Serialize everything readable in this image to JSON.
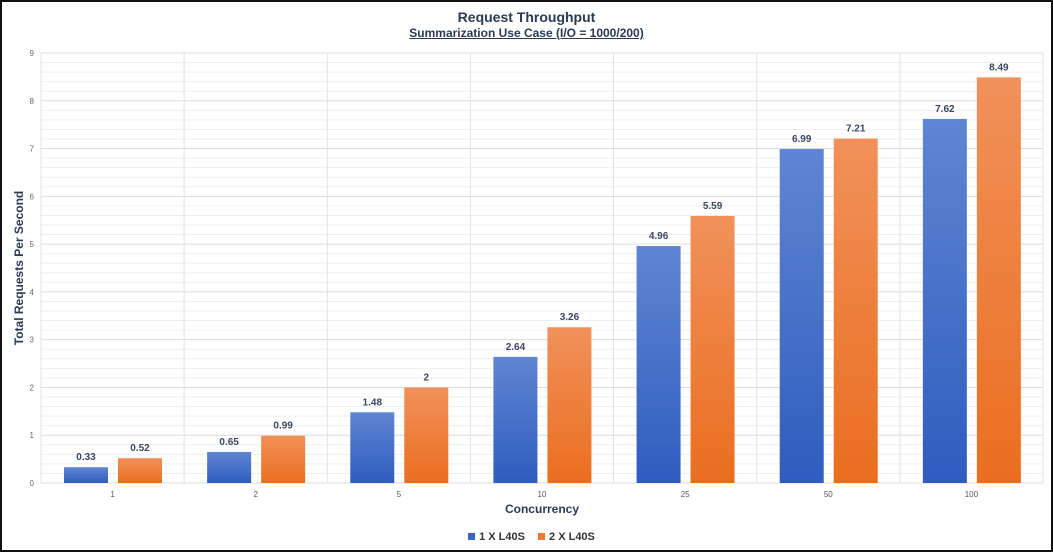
{
  "chart_data": {
    "type": "bar",
    "title": "Request Throughput",
    "subtitle": "Summarization Use Case (I/O = 1000/200)",
    "xlabel": "Concurrency",
    "ylabel": "Total Requests Per Second",
    "categories": [
      "1",
      "2",
      "5",
      "10",
      "25",
      "50",
      "100"
    ],
    "ylim": [
      0,
      9
    ],
    "yticks": [
      "0",
      "1",
      "2",
      "3",
      "4",
      "5",
      "6",
      "7",
      "8",
      "9"
    ],
    "grid": true,
    "legend_position": "bottom",
    "series": [
      {
        "name": "1 X L40S",
        "color": "#3a67c4",
        "values": [
          0.33,
          0.65,
          1.48,
          2.64,
          4.96,
          6.99,
          7.62
        ],
        "labels": [
          "0.33",
          "0.65",
          "1.48",
          "2.64",
          "4.96",
          "6.99",
          "7.62"
        ]
      },
      {
        "name": "2 X L40S",
        "color": "#ef7a2e",
        "values": [
          0.52,
          0.99,
          2,
          3.26,
          5.59,
          7.21,
          8.49
        ],
        "labels": [
          "0.52",
          "0.99",
          "2",
          "3.26",
          "5.59",
          "7.21",
          "8.49"
        ]
      }
    ]
  }
}
